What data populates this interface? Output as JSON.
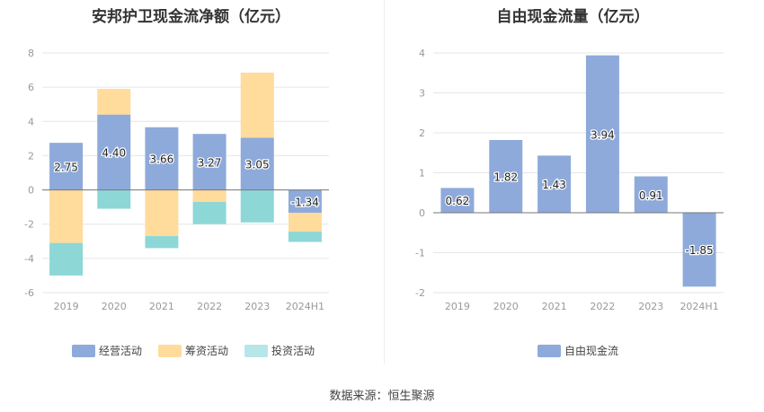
{
  "footer": {
    "source": "数据来源：恒生聚源"
  },
  "colors": {
    "operating": "#8eaadb",
    "financing": "#ffdb9c",
    "investing": "#8dd7d7",
    "fcf": "#8eaadb",
    "grid": "#e6e6e6",
    "axis_text": "#999999"
  },
  "chart_data": [
    {
      "type": "bar",
      "stacked": true,
      "title": "安邦护卫现金流净额（亿元）",
      "categories": [
        "2019",
        "2020",
        "2021",
        "2022",
        "2023",
        "2024H1"
      ],
      "ylim": [
        -6,
        8
      ],
      "yticks": [
        -6,
        -4,
        -2,
        0,
        2,
        4,
        6,
        8
      ],
      "grid": true,
      "legend_position": "bottom",
      "series": [
        {
          "name": "经营活动",
          "key": "operating",
          "values": [
            2.75,
            4.4,
            3.66,
            3.27,
            3.05,
            -1.34
          ],
          "labels": [
            "2.75",
            "4.40",
            "3.66",
            "3.27",
            "3.05",
            "-1.34"
          ]
        },
        {
          "name": "筹资活动",
          "key": "financing",
          "values": [
            -3.1,
            1.5,
            -2.7,
            -0.7,
            3.8,
            -1.1
          ]
        },
        {
          "name": "投资活动",
          "key": "investing",
          "values": [
            -1.9,
            -1.1,
            -0.7,
            -1.3,
            -1.9,
            -0.6
          ]
        }
      ]
    },
    {
      "type": "bar",
      "title": "自由现金流量（亿元）",
      "categories": [
        "2019",
        "2020",
        "2021",
        "2022",
        "2023",
        "2024H1"
      ],
      "ylim": [
        -2,
        4
      ],
      "yticks": [
        -2,
        -1,
        0,
        1,
        2,
        3,
        4
      ],
      "grid": true,
      "legend_position": "bottom",
      "series": [
        {
          "name": "自由现金流",
          "key": "fcf",
          "values": [
            0.62,
            1.82,
            1.43,
            3.94,
            0.91,
            -1.85
          ],
          "labels": [
            "0.62",
            "1.82",
            "1.43",
            "3.94",
            "0.91",
            "-1.85"
          ]
        }
      ]
    }
  ]
}
